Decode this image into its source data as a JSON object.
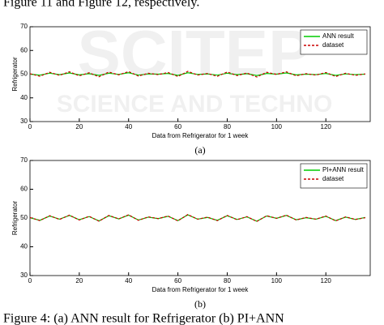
{
  "header_text": "Figure 11 and Figure 12, respectively.",
  "watermark": {
    "line1": "SCITEP",
    "line2": "SCIENCE AND TECHNO"
  },
  "chart_data": [
    {
      "type": "line",
      "caption": "(a)",
      "xlabel": "Data from Refrigerator for 1 week",
      "ylabel": "Refrigerator",
      "xlim": [
        0,
        138
      ],
      "xticks": [
        0,
        20,
        40,
        60,
        80,
        100,
        120
      ],
      "ylim": [
        30,
        70
      ],
      "yticks": [
        30,
        40,
        50,
        60,
        70
      ],
      "legend": "top-right",
      "x": [
        0,
        4,
        8,
        12,
        16,
        20,
        24,
        28,
        32,
        36,
        40,
        44,
        48,
        52,
        56,
        60,
        64,
        68,
        72,
        76,
        80,
        84,
        88,
        92,
        96,
        100,
        104,
        108,
        112,
        116,
        120,
        124,
        128,
        132,
        136
      ],
      "series": [
        {
          "name": "ANN result",
          "color": "#00cc00",
          "dashed": false,
          "values": [
            50.0,
            49.6,
            50.4,
            49.8,
            50.5,
            49.7,
            50.2,
            49.5,
            50.4,
            49.9,
            50.6,
            49.6,
            50.1,
            50.0,
            50.3,
            49.5,
            50.6,
            49.9,
            50.1,
            49.6,
            50.4,
            49.8,
            50.2,
            49.4,
            50.3,
            50.0,
            50.5,
            49.7,
            50.0,
            49.8,
            50.3,
            49.5,
            50.1,
            49.8,
            50.0
          ]
        },
        {
          "name": "dataset",
          "color": "#cc0000",
          "dashed": true,
          "values": [
            50.2,
            49.1,
            50.8,
            49.5,
            51.0,
            49.3,
            50.6,
            48.9,
            50.9,
            49.7,
            51.1,
            49.2,
            50.4,
            49.8,
            50.7,
            49.0,
            51.2,
            49.6,
            50.3,
            49.1,
            50.9,
            49.4,
            50.5,
            48.8,
            50.8,
            49.9,
            51.0,
            49.3,
            50.2,
            49.6,
            50.7,
            49.0,
            50.4,
            49.5,
            50.1
          ]
        }
      ]
    },
    {
      "type": "line",
      "caption": "(b)",
      "xlabel": "Data from Refrigerator for 1 week",
      "ylabel": "Refrigerator",
      "xlim": [
        0,
        138
      ],
      "xticks": [
        0,
        20,
        40,
        60,
        80,
        100,
        120
      ],
      "ylim": [
        30,
        70
      ],
      "yticks": [
        30,
        40,
        50,
        60,
        70
      ],
      "legend": "top-right",
      "x": [
        0,
        4,
        8,
        12,
        16,
        20,
        24,
        28,
        32,
        36,
        40,
        44,
        48,
        52,
        56,
        60,
        64,
        68,
        72,
        76,
        80,
        84,
        88,
        92,
        96,
        100,
        104,
        108,
        112,
        116,
        120,
        124,
        128,
        132,
        136
      ],
      "series": [
        {
          "name": "PI+ANN result",
          "color": "#00cc00",
          "dashed": false,
          "values": [
            50.1,
            49.2,
            50.7,
            49.6,
            50.9,
            49.4,
            50.5,
            49.0,
            50.8,
            49.7,
            51.0,
            49.3,
            50.3,
            49.8,
            50.6,
            49.1,
            51.1,
            49.6,
            50.2,
            49.2,
            50.8,
            49.5,
            50.4,
            48.9,
            50.7,
            49.9,
            50.9,
            49.4,
            50.1,
            49.6,
            50.6,
            49.1,
            50.3,
            49.5,
            50.2
          ]
        },
        {
          "name": "dataset",
          "color": "#cc0000",
          "dashed": true,
          "values": [
            50.2,
            49.1,
            50.8,
            49.5,
            51.0,
            49.3,
            50.6,
            48.9,
            50.9,
            49.7,
            51.1,
            49.2,
            50.4,
            49.8,
            50.7,
            49.0,
            51.2,
            49.6,
            50.3,
            49.1,
            50.9,
            49.4,
            50.5,
            48.8,
            50.8,
            49.9,
            51.0,
            49.3,
            50.2,
            49.6,
            50.7,
            49.0,
            50.4,
            49.5,
            50.1
          ]
        }
      ]
    }
  ],
  "footer_text": "Figure 4: (a) ANN result for Refrigerator (b) PI+ANN"
}
